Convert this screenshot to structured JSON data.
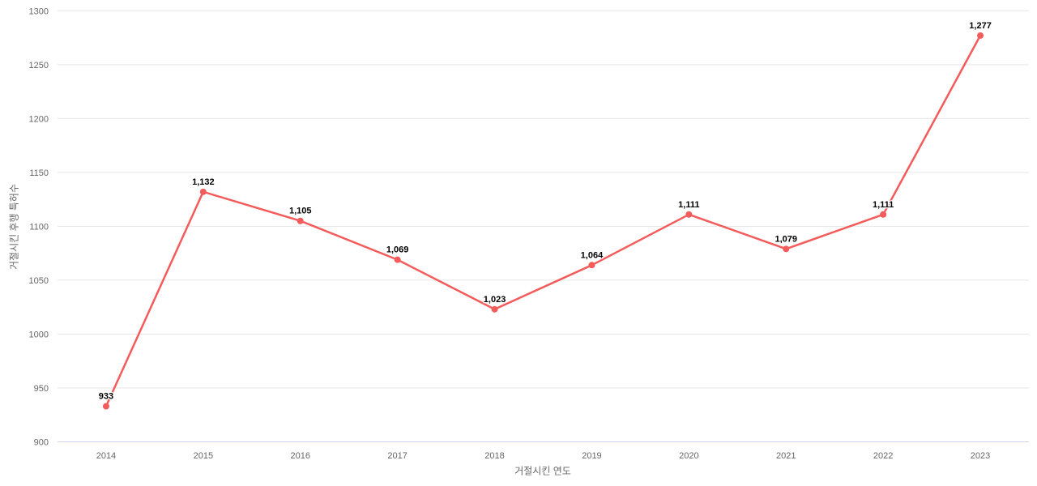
{
  "chart_data": {
    "type": "line",
    "title": "",
    "xlabel": "거절시킨 연도",
    "ylabel": "거절시킨 후행 특허수",
    "categories": [
      "2014",
      "2015",
      "2016",
      "2017",
      "2018",
      "2019",
      "2020",
      "2021",
      "2022",
      "2023"
    ],
    "series": [
      {
        "name": "거절시킨 후행 특허수",
        "values": [
          933,
          1132,
          1105,
          1069,
          1023,
          1064,
          1111,
          1079,
          1111,
          1277
        ],
        "labels": [
          "933",
          "1,132",
          "1,105",
          "1,069",
          "1,023",
          "1,064",
          "1,111",
          "1,079",
          "1,111",
          "1,277"
        ],
        "color": "#f45b5b"
      }
    ],
    "ylim": [
      900,
      1300
    ],
    "ytick_step": 50,
    "yticks": [
      "900",
      "950",
      "1000",
      "1050",
      "1100",
      "1150",
      "1200",
      "1250",
      "1300"
    ],
    "grid": true,
    "legend": false,
    "colors": {
      "series": "#f45b5b",
      "grid": "#e6e6e6",
      "axis_line": "#ccd6eb",
      "tick_label": "#666666",
      "axis_title": "#666666",
      "data_label": "#000000",
      "data_label_halo": "#ffffff",
      "background": "#ffffff"
    }
  }
}
